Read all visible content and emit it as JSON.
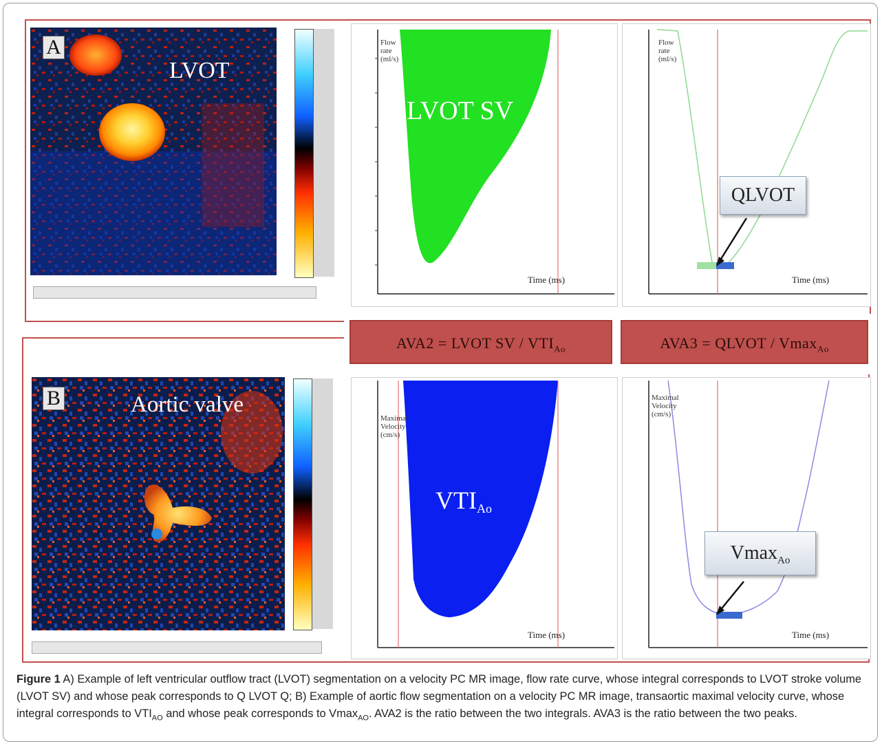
{
  "panel_a": {
    "label": "A",
    "mr_title": "LVOT",
    "chart_sv": {
      "label": "LVOT SV",
      "y_label_lines": [
        "Flow",
        "rate",
        "(ml/s)"
      ],
      "x_label": "Time (ms)",
      "fill": "#22e022"
    },
    "chart_q": {
      "y_label_lines": [
        "Flow",
        "rate",
        "(ml/s)"
      ],
      "x_label": "Time (ms)",
      "callout": "QLVOT",
      "curve": "#8fd98f"
    }
  },
  "formulas": {
    "ava2": {
      "main": "AVA2 = LVOT SV / VTI",
      "sub": "Ao"
    },
    "ava3": {
      "main": "AVA3 = QLVOT / Vmax",
      "sub": "Ao"
    }
  },
  "panel_b": {
    "label": "B",
    "mr_title": "Aortic valve",
    "chart_vti": {
      "label_main": "VTI",
      "label_sub": "Ao",
      "y_label_lines": [
        "Maximal",
        "Velocity",
        "(cm/s)"
      ],
      "x_label": "Time (ms)",
      "fill": "#0a1ff0"
    },
    "chart_vmax": {
      "y_label_lines": [
        "Maximal",
        "Velocity",
        "(cm/s)"
      ],
      "x_label": "Time (ms)",
      "callout_main": "Vmax",
      "callout_sub": "Ao",
      "curve": "#8a8ae0"
    }
  },
  "caption": {
    "figure_label": "Figure 1",
    "t1": " A) Example of left ventricular outflow tract (LVOT) segmentation on a velocity PC MR image, flow rate curve, whose integral corresponds to LVOT stroke volume (LVOT SV) and whose peak corresponds to Q LVOT Q; B) Example of aortic flow segmentation on a velocity PC MR image, transaortic maximal velocity curve, whose integral corresponds to VTI",
    "s1": "AO",
    "t2": " and whose peak corresponds to Vmax",
    "s2": "AO",
    "t3": ". AVA2 is the ratio between the two integrals. AVA3 is the ratio between the two peaks."
  },
  "colors": {
    "frame": "#c0504d",
    "formula_bg": "#c0504d",
    "marker_line": "#e07070"
  }
}
